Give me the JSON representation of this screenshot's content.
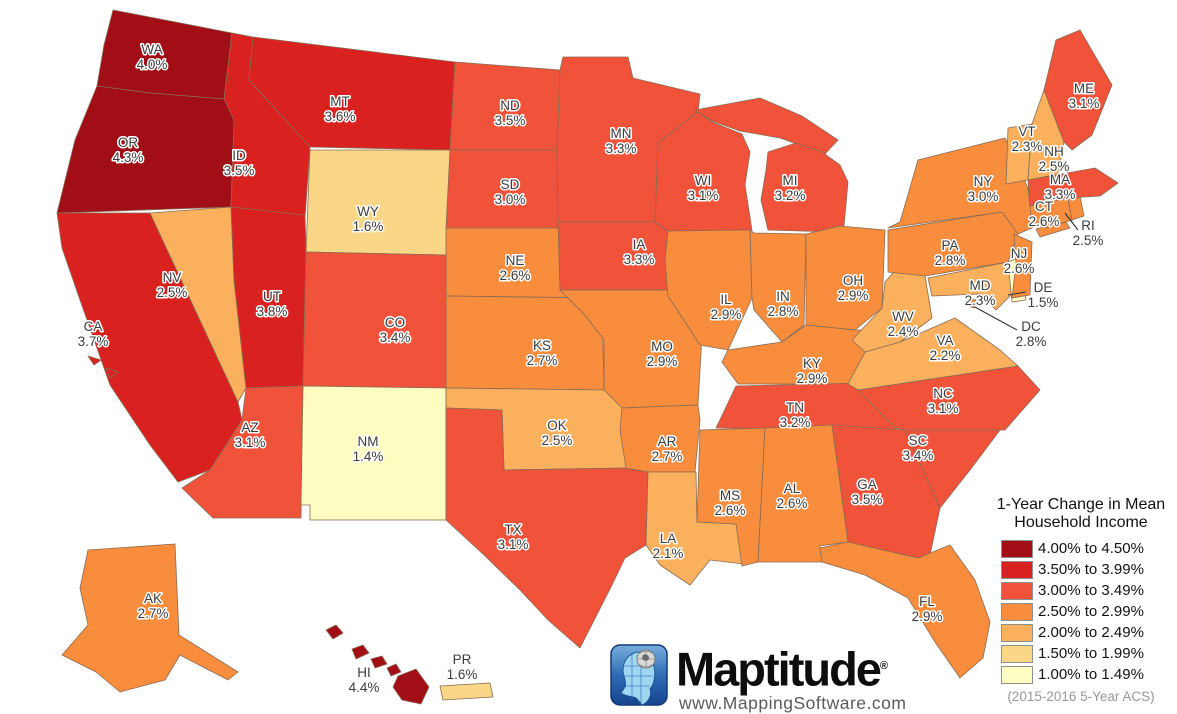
{
  "legend": {
    "title_line1": "1-Year Change in Mean",
    "title_line2": "Household Income",
    "classes": [
      {
        "label": "4.00% to 4.50%",
        "color": "#a10e15"
      },
      {
        "label": "3.50% to 3.99%",
        "color": "#d92220"
      },
      {
        "label": "3.00% to 3.49%",
        "color": "#f1523a"
      },
      {
        "label": "2.50% to 2.99%",
        "color": "#f78d3d"
      },
      {
        "label": "2.00% to 2.49%",
        "color": "#fab05c"
      },
      {
        "label": "1.50% to 1.99%",
        "color": "#fad787"
      },
      {
        "label": "1.00% to 1.49%",
        "color": "#fdfdc2"
      }
    ],
    "source_note": "(2015-2016 5-Year ACS)"
  },
  "branding": {
    "wordmark": "Maptitude",
    "registered": "®",
    "url": "www.MappingSoftware.com"
  },
  "states": [
    {
      "abbr": "WA",
      "value": "4.0%",
      "cls": 1
    },
    {
      "abbr": "OR",
      "value": "4.3%",
      "cls": 1
    },
    {
      "abbr": "CA",
      "value": "3.7%",
      "cls": 2
    },
    {
      "abbr": "ID",
      "value": "3.5%",
      "cls": 2
    },
    {
      "abbr": "MT",
      "value": "3.6%",
      "cls": 2
    },
    {
      "abbr": "WY",
      "value": "1.6%",
      "cls": 6
    },
    {
      "abbr": "NV",
      "value": "2.5%",
      "cls": 5
    },
    {
      "abbr": "UT",
      "value": "3.8%",
      "cls": 2
    },
    {
      "abbr": "CO",
      "value": "3.4%",
      "cls": 3
    },
    {
      "abbr": "AZ",
      "value": "3.1%",
      "cls": 3
    },
    {
      "abbr": "NM",
      "value": "1.4%",
      "cls": 7
    },
    {
      "abbr": "ND",
      "value": "3.5%",
      "cls": 3
    },
    {
      "abbr": "SD",
      "value": "3.0%",
      "cls": 3
    },
    {
      "abbr": "NE",
      "value": "2.6%",
      "cls": 4
    },
    {
      "abbr": "KS",
      "value": "2.7%",
      "cls": 4
    },
    {
      "abbr": "OK",
      "value": "2.5%",
      "cls": 5
    },
    {
      "abbr": "TX",
      "value": "3.1%",
      "cls": 3
    },
    {
      "abbr": "MN",
      "value": "3.3%",
      "cls": 3
    },
    {
      "abbr": "IA",
      "value": "3.3%",
      "cls": 3
    },
    {
      "abbr": "MO",
      "value": "2.9%",
      "cls": 4
    },
    {
      "abbr": "AR",
      "value": "2.7%",
      "cls": 4
    },
    {
      "abbr": "LA",
      "value": "2.1%",
      "cls": 5
    },
    {
      "abbr": "WI",
      "value": "3.1%",
      "cls": 3
    },
    {
      "abbr": "IL",
      "value": "2.9%",
      "cls": 4
    },
    {
      "abbr": "MI",
      "value": "3.2%",
      "cls": 3
    },
    {
      "abbr": "IN",
      "value": "2.8%",
      "cls": 4
    },
    {
      "abbr": "OH",
      "value": "2.9%",
      "cls": 4
    },
    {
      "abbr": "KY",
      "value": "2.9%",
      "cls": 4
    },
    {
      "abbr": "TN",
      "value": "3.2%",
      "cls": 3
    },
    {
      "abbr": "MS",
      "value": "2.6%",
      "cls": 4
    },
    {
      "abbr": "AL",
      "value": "2.6%",
      "cls": 4
    },
    {
      "abbr": "GA",
      "value": "3.5%",
      "cls": 3
    },
    {
      "abbr": "FL",
      "value": "2.9%",
      "cls": 4
    },
    {
      "abbr": "SC",
      "value": "3.4%",
      "cls": 3
    },
    {
      "abbr": "NC",
      "value": "3.1%",
      "cls": 3
    },
    {
      "abbr": "VA",
      "value": "2.2%",
      "cls": 5
    },
    {
      "abbr": "WV",
      "value": "2.4%",
      "cls": 5
    },
    {
      "abbr": "MD",
      "value": "2.3%",
      "cls": 5
    },
    {
      "abbr": "DE",
      "value": "1.5%",
      "cls": 7
    },
    {
      "abbr": "DC",
      "value": "2.8%",
      "cls": 4
    },
    {
      "abbr": "PA",
      "value": "2.8%",
      "cls": 4
    },
    {
      "abbr": "NJ",
      "value": "2.6%",
      "cls": 4
    },
    {
      "abbr": "NY",
      "value": "3.0%",
      "cls": 4
    },
    {
      "abbr": "CT",
      "value": "2.6%",
      "cls": 4
    },
    {
      "abbr": "RI",
      "value": "2.5%",
      "cls": 4
    },
    {
      "abbr": "MA",
      "value": "3.3%",
      "cls": 3
    },
    {
      "abbr": "VT",
      "value": "2.3%",
      "cls": 5
    },
    {
      "abbr": "NH",
      "value": "2.5%",
      "cls": 5
    },
    {
      "abbr": "ME",
      "value": "3.1%",
      "cls": 3
    },
    {
      "abbr": "AK",
      "value": "2.7%",
      "cls": 4
    },
    {
      "abbr": "HI",
      "value": "4.4%",
      "cls": 1
    },
    {
      "abbr": "PR",
      "value": "1.6%",
      "cls": 6
    }
  ]
}
